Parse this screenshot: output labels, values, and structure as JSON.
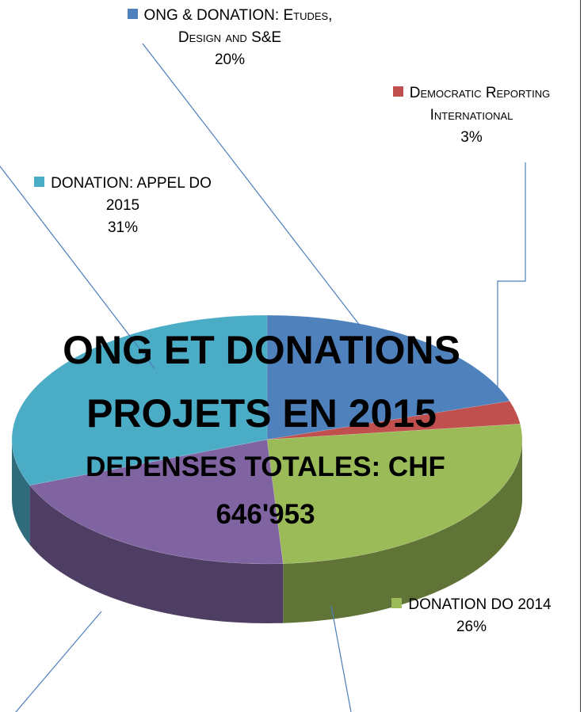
{
  "chart_data": {
    "type": "pie",
    "title": "ONG ET DONATIONS PROJETS EN 2015",
    "subtitle": "DEPENSES TOTALES: CHF 646'953",
    "categories": [
      "ONG & DONATION: Etudes, Design and S&E",
      "Democratic Reporting International",
      "DONATION DO 2014",
      null,
      "DONATION: APPEL DO 2015"
    ],
    "values": [
      20,
      3,
      26,
      20,
      31
    ],
    "value_labels": [
      "20%",
      "3%",
      "26%",
      null,
      "31%"
    ],
    "colors": [
      "#4f81bd",
      "#c0504d",
      "#9bbb59",
      "#8064a2",
      "#4bacc6"
    ]
  }
}
